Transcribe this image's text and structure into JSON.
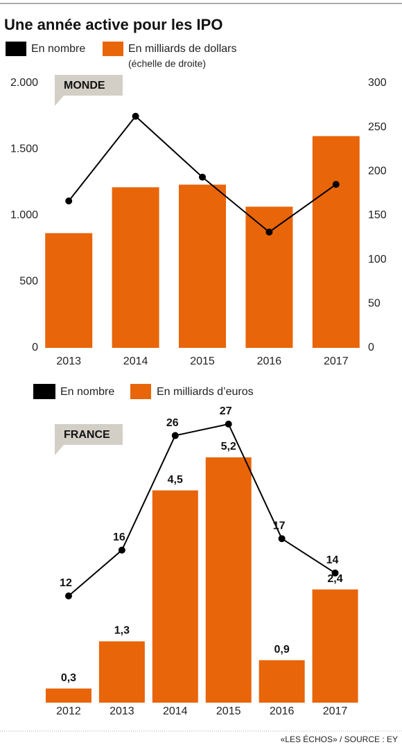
{
  "title": "Une année active pour les IPO",
  "source": "«LES ÉCHOS» / SOURCE : EY",
  "chart_data": [
    {
      "type": "combo",
      "label": "MONDE",
      "categories": [
        "2013",
        "2014",
        "2015",
        "2016",
        "2017"
      ],
      "series": [
        {
          "name": "En nombre",
          "type": "line",
          "color": "#000000",
          "values": [
            1110,
            1750,
            1290,
            875,
            1235
          ]
        },
        {
          "name": "En milliards de dollars",
          "type": "bar",
          "axis": "y2",
          "color": "#e8650a",
          "values": [
            130,
            182,
            185,
            160,
            240
          ]
        }
      ],
      "legend_note": "(échelle de droite)",
      "ylim": [
        0,
        2000
      ],
      "yticks": [
        0,
        500,
        {
          "value": 1000,
          "label": "1.000"
        },
        {
          "value": 1500,
          "label": "1.500"
        },
        {
          "value": 2000,
          "label": "2.000"
        }
      ],
      "y2lim": [
        0,
        300
      ],
      "y2ticks": [
        0,
        50,
        100,
        150,
        200,
        250,
        300
      ],
      "grid": false
    },
    {
      "type": "combo",
      "label": "FRANCE",
      "categories": [
        "2012",
        "2013",
        "2014",
        "2015",
        "2016",
        "2017"
      ],
      "series": [
        {
          "name": "En nombre",
          "type": "line",
          "color": "#000000",
          "values": [
            12,
            16,
            26,
            27,
            17,
            14
          ]
        },
        {
          "name": "En milliards d’euros",
          "type": "bar",
          "color": "#e8650a",
          "values": [
            0.3,
            1.3,
            4.5,
            5.2,
            0.9,
            2.4
          ],
          "value_labels": [
            "0,3",
            "1,3",
            "4,5",
            "5,2",
            "0,9",
            "2,4"
          ]
        }
      ],
      "data_labels": true,
      "grid": false
    }
  ]
}
